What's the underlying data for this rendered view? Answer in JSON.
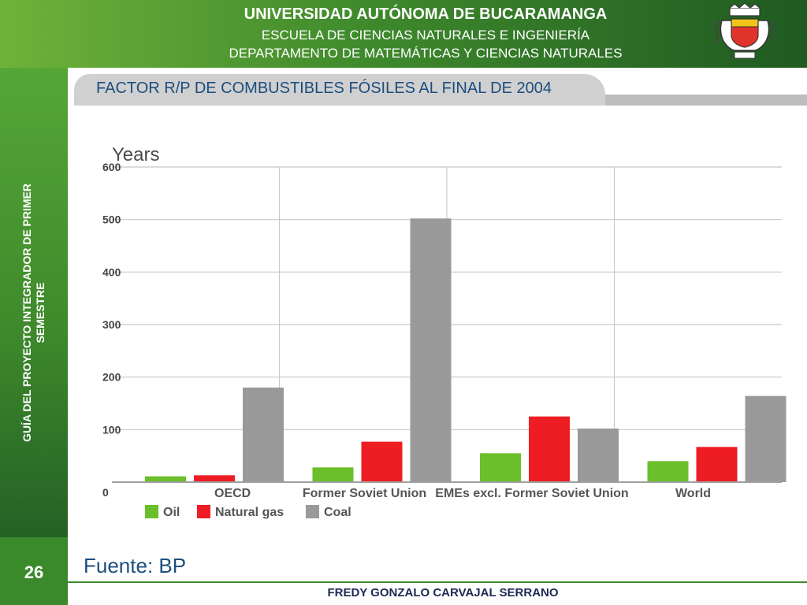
{
  "header": {
    "line1": "UNIVERSIDAD AUTÓNOMA DE BUCARAMANGA",
    "line2": "ESCUELA DE CIENCIAS NATURALES E INGENIERÍA",
    "line3": "DEPARTAMENTO DE MATEMÁTICAS Y CIENCIAS NATURALES"
  },
  "logo": {
    "icon": "university-crest-icon"
  },
  "sidebar": {
    "line1": "GUÍA DEL PROYECTO INTEGRADOR DE PRIMER",
    "line2": "SEMESTRE"
  },
  "slide": {
    "title": "FACTOR R/P DE COMBUSTIBLES FÓSILES AL FINAL DE 2004",
    "source": "Fuente: BP",
    "page_number": "26",
    "author": "FREDY GONZALO CARVAJAL SERRANO"
  },
  "colors": {
    "oil": "#6bbf2a",
    "natural_gas": "#ee1d23",
    "coal": "#999999",
    "title_text": "#1b4d7e"
  },
  "chart_data": {
    "type": "bar",
    "ylabel": "Years",
    "ylim": [
      0,
      600
    ],
    "yticks": [
      0,
      100,
      200,
      300,
      400,
      500,
      600
    ],
    "categories": [
      "OECD",
      "Former Soviet Union",
      "EMEs excl. Former Soviet Union",
      "World"
    ],
    "series": [
      {
        "name": "Oil",
        "color": "#6bbf2a",
        "values": [
          11,
          28,
          55,
          40
        ]
      },
      {
        "name": "Natural gas",
        "color": "#ee1d23",
        "values": [
          13,
          77,
          125,
          67
        ]
      },
      {
        "name": "Coal",
        "color": "#999999",
        "values": [
          180,
          502,
          102,
          164
        ]
      }
    ],
    "grid": true,
    "legend": "bottom-left"
  }
}
